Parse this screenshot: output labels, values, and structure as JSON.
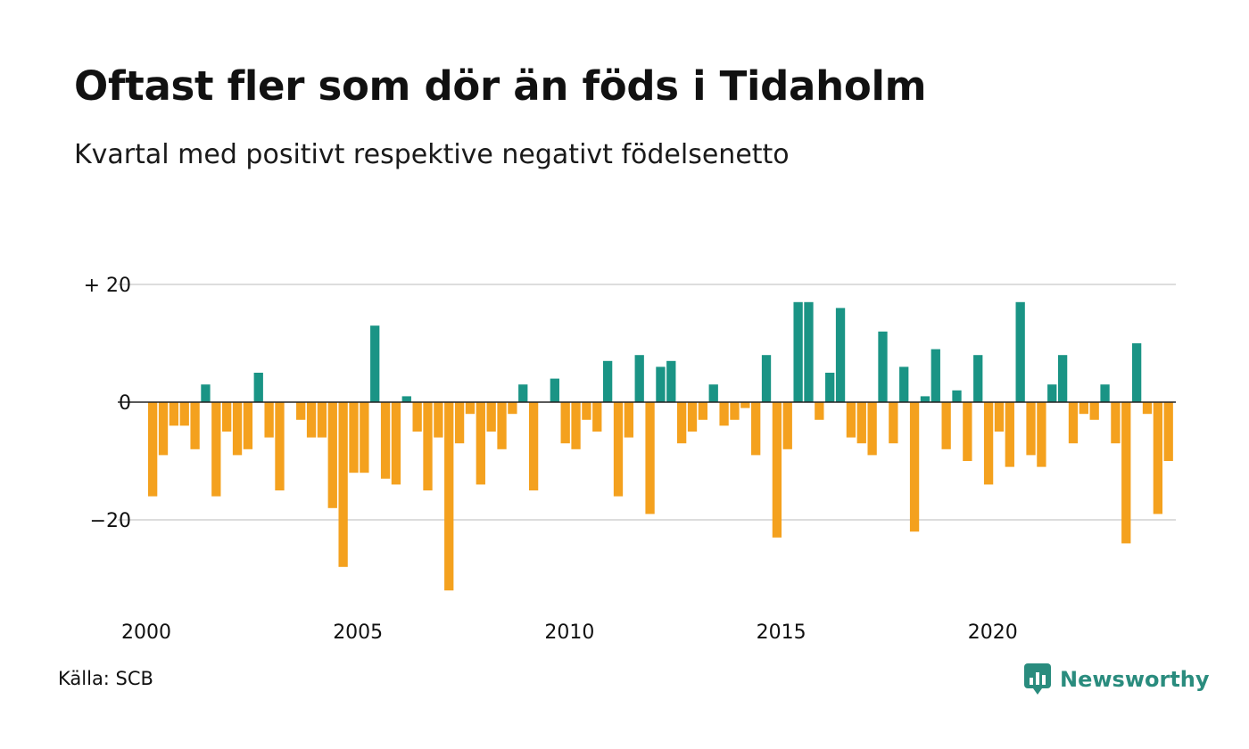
{
  "title": "Oftast fler som dör än föds i Tidaholm",
  "subtitle": "Kvartal med positivt respektive negativt födelsenetto",
  "source": "Källa: SCB",
  "brand": "Newsworthy",
  "colors": {
    "positive": "#1a9485",
    "negative": "#f4a11e",
    "grid": "#dddddd",
    "zero": "#222222",
    "brand": "#2a8c7e"
  },
  "chart_data": {
    "type": "bar",
    "ylim": [
      -35,
      22
    ],
    "yticks": [
      {
        "value": 20,
        "label": "+ 20"
      },
      {
        "value": 0,
        "label": "0"
      },
      {
        "value": -20,
        "label": "−20"
      }
    ],
    "xticks": [
      {
        "value": 2000,
        "label": "2000"
      },
      {
        "value": 2005,
        "label": "2005"
      },
      {
        "value": 2010,
        "label": "2010"
      },
      {
        "value": 2015,
        "label": "2015"
      },
      {
        "value": 2020,
        "label": "2020"
      }
    ],
    "x_start": 2000,
    "per_year": 4,
    "values": [
      -16,
      -9,
      -4,
      -4,
      -8,
      3,
      -16,
      -5,
      -9,
      -8,
      5,
      -6,
      -15,
      0,
      -3,
      -6,
      -6,
      -18,
      -28,
      -12,
      -12,
      13,
      -13,
      -14,
      1,
      -5,
      -15,
      -6,
      -32,
      -7,
      -2,
      -14,
      -5,
      -8,
      -2,
      3,
      -15,
      0,
      4,
      -7,
      -8,
      -3,
      -5,
      7,
      -16,
      -6,
      8,
      -19,
      6,
      7,
      -7,
      -5,
      -3,
      3,
      -4,
      -3,
      -1,
      -9,
      8,
      -23,
      -8,
      17,
      17,
      -3,
      5,
      16,
      -6,
      -7,
      -9,
      12,
      -7,
      6,
      -22,
      1,
      9,
      -8,
      2,
      -10,
      8,
      -14,
      -5,
      -11,
      17,
      -9,
      -11,
      3,
      8,
      -7,
      -2,
      -3,
      3,
      -7,
      -24,
      10,
      -2,
      -19,
      -10
    ]
  }
}
